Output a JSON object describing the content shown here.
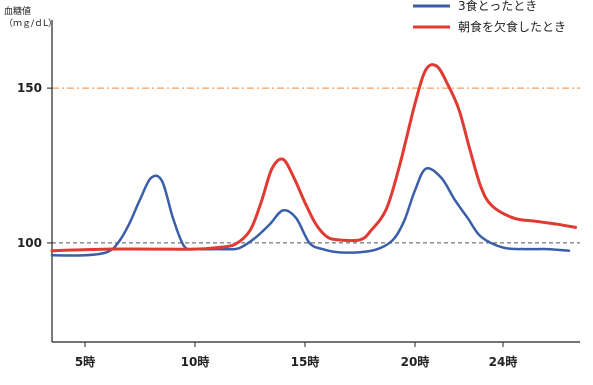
{
  "chart_data": {
    "type": "line",
    "ylabel_line1": "血糖値",
    "ylabel_line2": "（ｍｇ/ｄL）",
    "x_ticks": [
      {
        "x": 5,
        "label": "5時"
      },
      {
        "x": 10,
        "label": "10時"
      },
      {
        "x": 15,
        "label": "15時"
      },
      {
        "x": 20,
        "label": "20時"
      },
      {
        "x": 24,
        "label": "24時"
      }
    ],
    "y_ticks": [
      {
        "y": 100,
        "label": "100"
      },
      {
        "y": 150,
        "label": "150"
      }
    ],
    "xlim": [
      3.5,
      27.5
    ],
    "ylim": [
      68,
      172
    ],
    "reference_lines": [
      {
        "y": 150,
        "style": "dash-dot",
        "color": "#f0a060"
      },
      {
        "y": 100,
        "style": "dashed",
        "color": "#555555"
      }
    ],
    "legend_position": "top-right",
    "series": [
      {
        "name": "3食とったとき",
        "color": "#3a5ea8",
        "x": [
          3.5,
          5,
          6,
          6.5,
          7,
          7.5,
          8,
          8.5,
          9,
          9.5,
          10,
          11,
          11.8,
          12.2,
          12.8,
          13.4,
          14,
          14.6,
          15.2,
          15.8,
          16.5,
          17.5,
          18.3,
          19,
          19.5,
          20,
          20.5,
          21.2,
          21.8,
          22.4,
          23,
          24,
          25,
          26,
          27
        ],
        "y": [
          96,
          96,
          97,
          100,
          106,
          114,
          121,
          120,
          108,
          99,
          98,
          98,
          98,
          99,
          102,
          106,
          110.5,
          108,
          100,
          98,
          97,
          97,
          98,
          101,
          107,
          117,
          124,
          121,
          114,
          108,
          102,
          98.5,
          98,
          98,
          97.5
        ]
      },
      {
        "name": "朝食を欠食したとき",
        "color": "#e03a33",
        "x": [
          3.5,
          6,
          8,
          10,
          11,
          11.8,
          12.5,
          13,
          13.5,
          14,
          14.5,
          15,
          15.5,
          16,
          16.5,
          17.5,
          18,
          18.7,
          19.3,
          20,
          20.5,
          21,
          21.5,
          22,
          22.5,
          23,
          23.5,
          24.5,
          25.5,
          26.5,
          27.3
        ],
        "y": [
          97.5,
          98,
          98,
          98,
          98.5,
          99.5,
          104,
          113,
          124,
          127,
          121,
          113,
          106,
          102,
          101,
          101,
          104,
          111,
          125,
          145,
          156,
          157,
          151,
          143,
          130,
          118,
          112,
          108,
          107,
          106,
          105
        ]
      }
    ]
  }
}
